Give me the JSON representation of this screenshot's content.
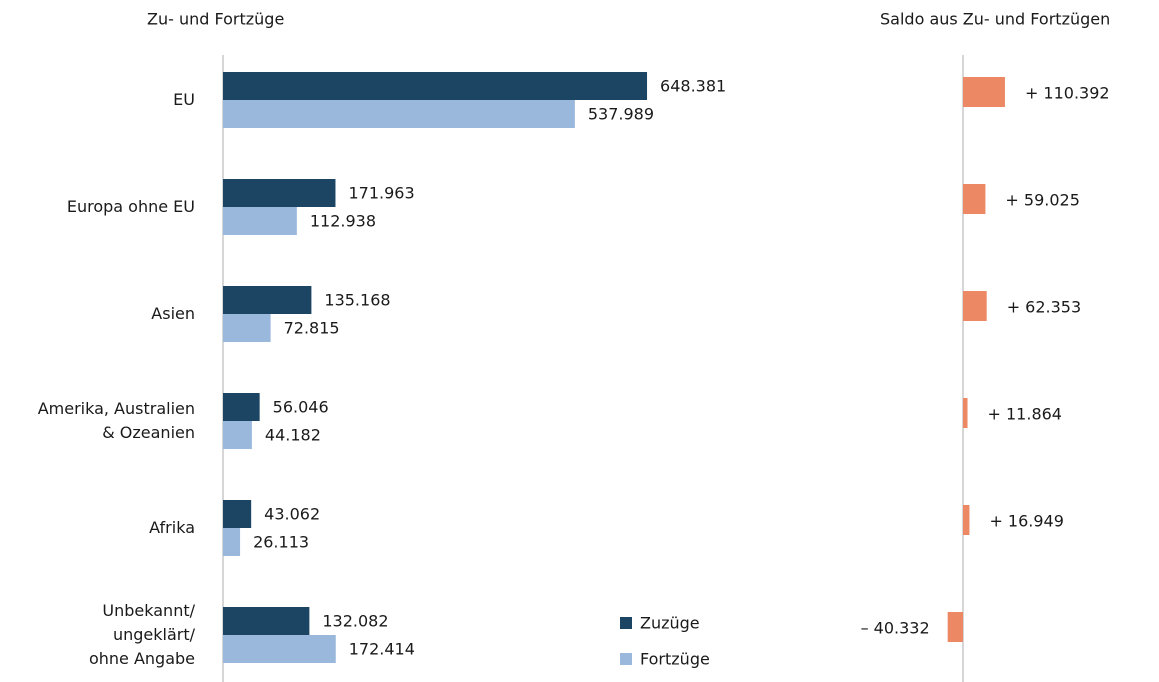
{
  "chart_data": [
    {
      "type": "hbar",
      "title": "Zu- und Fortzüge",
      "categories": [
        "EU",
        "Europa ohne EU",
        "Asien",
        "Amerika, Australien\n& Ozeanien",
        "Afrika",
        "Unbekannt/\nungeklärt/\nohne Angabe"
      ],
      "series": [
        {
          "name": "Zuzüge",
          "color": "#1b4563",
          "values": [
            648381,
            171963,
            135168,
            56046,
            43062,
            132082
          ],
          "value_labels": [
            "648.381",
            "171.963",
            "135.168",
            "56.046",
            "43.062",
            "132.082"
          ]
        },
        {
          "name": "Fortzüge",
          "color": "#9ab8dc",
          "values": [
            537989,
            112938,
            72815,
            44182,
            26113,
            172414
          ],
          "value_labels": [
            "537.989",
            "112.938",
            "72.815",
            "44.182",
            "26.113",
            "172.414"
          ]
        }
      ],
      "xlim": [
        0,
        1000000
      ],
      "legend": "bottom-right"
    },
    {
      "type": "hbar",
      "title": "Saldo aus Zu- und Fortzügen",
      "color": "#ec8863",
      "values": [
        110392,
        59025,
        62353,
        11864,
        16949,
        -40332
      ],
      "value_labels": [
        "+ 110.392",
        "+ 59.025",
        "+ 62.353",
        "+ 11.864",
        "+ 16.949",
        "– 40.332"
      ],
      "xlim": [
        -150000,
        150000
      ]
    }
  ]
}
